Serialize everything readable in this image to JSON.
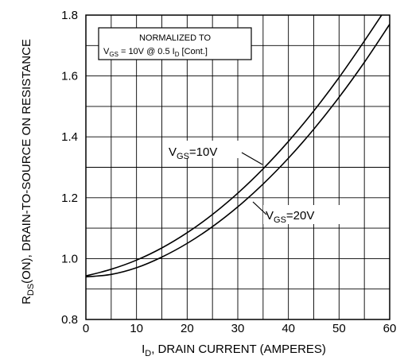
{
  "chart_data": {
    "type": "line",
    "xlabel": {
      "main": "I",
      "sub": "D",
      "rest": ", DRAIN CURRENT (AMPERES)"
    },
    "ylabel": {
      "main": "R",
      "sub": "DS",
      "rest": "(ON), DRAIN-TO-SOURCE ON RESISTANCE"
    },
    "xlim": [
      0,
      60
    ],
    "ylim": [
      0.8,
      1.8
    ],
    "x_ticks": [
      "0",
      "10",
      "20",
      "30",
      "40",
      "50",
      "60"
    ],
    "y_ticks": [
      "0.8",
      "1.0",
      "1.2",
      "1.4",
      "1.6",
      "1.8"
    ],
    "grid": true,
    "annotation": {
      "line1": "NORMALIZED TO",
      "v": "V",
      "v_sub": "GS",
      "mid": " = 10V  @  0.5  I",
      "i_sub": "D",
      "end": " [Cont.]"
    },
    "series": [
      {
        "name": "VGS=10V",
        "label": {
          "v": "V",
          "sub": "GS",
          "rest": "=10V"
        },
        "x": [
          0,
          5,
          10,
          15,
          20,
          25,
          30,
          35,
          40,
          45,
          50,
          55,
          60
        ],
        "y": [
          0.943,
          0.965,
          0.995,
          1.035,
          1.085,
          1.145,
          1.215,
          1.295,
          1.385,
          1.485,
          1.595,
          1.715,
          1.84
        ]
      },
      {
        "name": "VGS=20V",
        "label": {
          "v": "V",
          "sub": "GS",
          "rest": "=20V"
        },
        "x": [
          0,
          5,
          10,
          15,
          20,
          25,
          30,
          35,
          40,
          45,
          50,
          55,
          60
        ],
        "y": [
          0.94,
          0.948,
          0.97,
          1.005,
          1.05,
          1.105,
          1.17,
          1.245,
          1.33,
          1.425,
          1.53,
          1.645,
          1.77
        ]
      }
    ]
  }
}
